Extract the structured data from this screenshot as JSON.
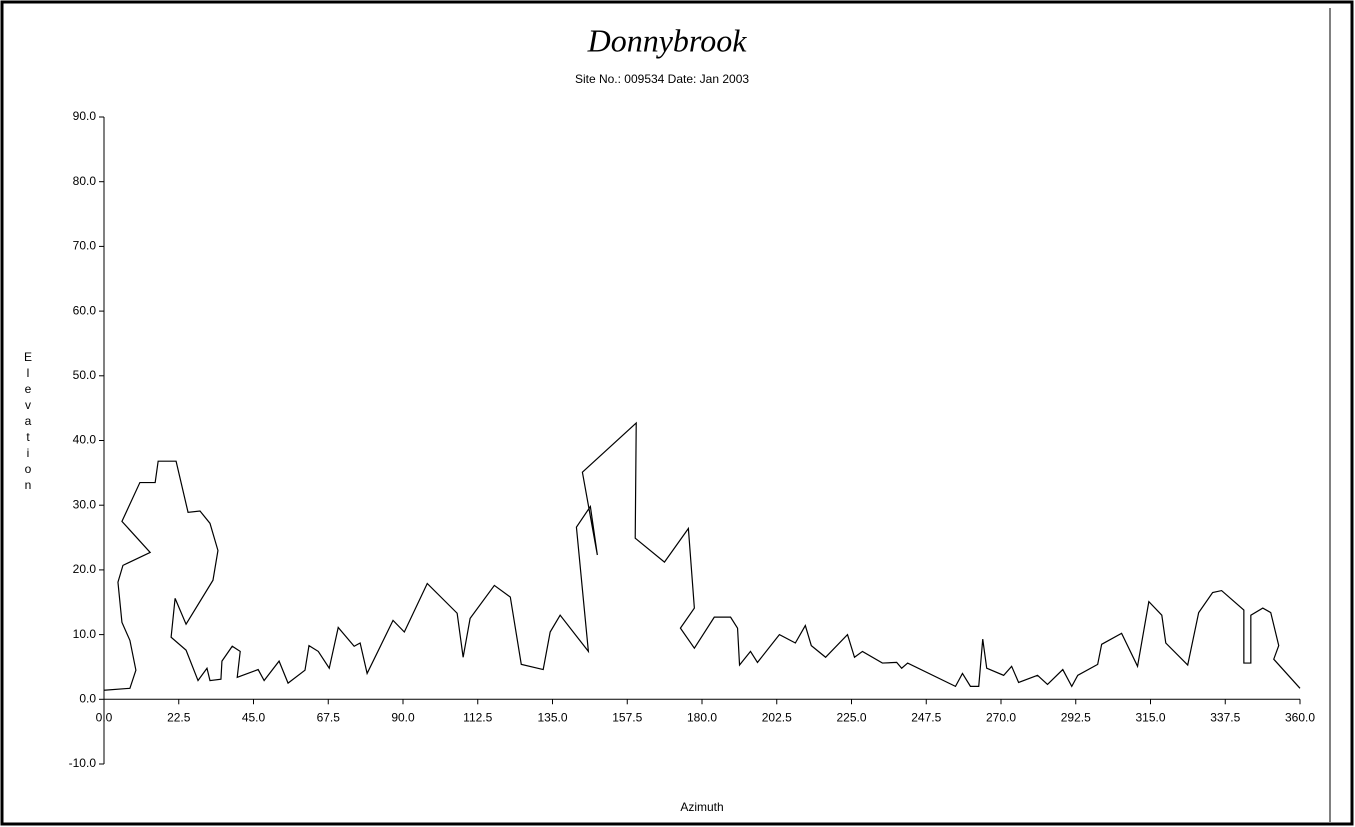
{
  "chart_data": {
    "type": "line",
    "title": "Donnybrook",
    "subtitle": "Site No.: 009534 Date: Jan 2003",
    "x_label": "Azimuth",
    "y_label": "Elevation",
    "color": "#000000",
    "x": [
      0,
      7.8,
      9.6,
      7.8,
      5.4,
      4.2,
      5.7,
      13.9,
      5.4,
      10.8,
      15.4,
      16.3,
      21.7,
      25.3,
      28.9,
      31.9,
      34.3,
      32.8,
      24.7,
      21.4,
      20.2,
      24.7,
      28.3,
      31.0,
      31.9,
      35.2,
      35.5,
      38.6,
      41.0,
      40.1,
      46.4,
      48.2,
      52.7,
      55.4,
      60.5,
      61.7,
      64.5,
      67.8,
      70.5,
      75.3,
      77.1,
      79.2,
      87.0,
      90.4,
      97.3,
      106.3,
      108.1,
      110.2,
      117.5,
      122.3,
      125.6,
      132.2,
      134.3,
      137.3,
      145.8,
      142.2,
      146.4,
      148.5,
      144.0,
      160.2,
      159.9,
      168.7,
      175.9,
      177.7,
      173.5,
      177.7,
      183.7,
      188.6,
      190.7,
      191.3,
      194.6,
      196.7,
      203.3,
      208.1,
      211.1,
      212.9,
      217.2,
      223.8,
      225.9,
      228.3,
      234.3,
      238.6,
      240.1,
      241.9,
      256.3,
      258.4,
      260.8,
      263.3,
      264.5,
      265.7,
      270.8,
      273.2,
      275.3,
      281.0,
      284.0,
      288.6,
      291.3,
      293.1,
      299.1,
      300.3,
      306.3,
      311.1,
      314.5,
      318.4,
      319.6,
      326.2,
      329.5,
      333.7,
      336.4,
      343.1,
      343.1,
      345.2,
      345.2,
      348.8,
      351.2,
      353.6,
      352.1,
      360
    ],
    "values": [
      1.4,
      1.7,
      4.5,
      9.1,
      11.9,
      18.1,
      20.7,
      22.7,
      27.5,
      33.5,
      33.5,
      36.8,
      36.8,
      28.9,
      29.1,
      27.2,
      23.0,
      18.4,
      11.6,
      15.6,
      9.6,
      7.6,
      2.9,
      4.8,
      2.9,
      3.1,
      5.9,
      8.2,
      7.4,
      3.4,
      4.6,
      2.9,
      5.9,
      2.5,
      4.5,
      8.3,
      7.4,
      4.8,
      11.1,
      8.2,
      8.7,
      4.0,
      12.2,
      10.4,
      17.9,
      13.3,
      6.5,
      12.5,
      17.6,
      15.8,
      5.4,
      4.6,
      10.4,
      13.0,
      7.4,
      26.6,
      29.8,
      22.3,
      35.1,
      42.7,
      24.9,
      21.2,
      26.4,
      14.1,
      11.0,
      7.9,
      12.7,
      12.7,
      11.0,
      5.3,
      7.4,
      5.7,
      10.0,
      8.7,
      11.4,
      8.3,
      6.5,
      10.0,
      6.5,
      7.4,
      5.6,
      5.7,
      4.8,
      5.6,
      2.0,
      4.0,
      2.0,
      2.0,
      9.3,
      4.8,
      3.7,
      5.1,
      2.6,
      3.7,
      2.3,
      4.6,
      2.0,
      3.7,
      5.4,
      8.5,
      10.2,
      5.1,
      15.1,
      13.0,
      8.7,
      5.3,
      13.4,
      16.5,
      16.8,
      13.8,
      5.6,
      5.6,
      13.0,
      14.1,
      13.4,
      8.3,
      6.2,
      1.7
    ],
    "xlim": [
      0,
      360
    ],
    "xticks": [
      {
        "value": 0,
        "label": "0.0"
      },
      {
        "value": 22.5,
        "label": "22.5"
      },
      {
        "value": 45,
        "label": "45.0"
      },
      {
        "value": 67.5,
        "label": "67.5"
      },
      {
        "value": 90,
        "label": "90.0"
      },
      {
        "value": 112.5,
        "label": "112.5"
      },
      {
        "value": 135,
        "label": "135.0"
      },
      {
        "value": 157.5,
        "label": "157.5"
      },
      {
        "value": 180,
        "label": "180.0"
      },
      {
        "value": 202.5,
        "label": "202.5"
      },
      {
        "value": 225,
        "label": "225.0"
      },
      {
        "value": 247.5,
        "label": "247.5"
      },
      {
        "value": 270,
        "label": "270.0"
      },
      {
        "value": 292.5,
        "label": "292.5"
      },
      {
        "value": 315,
        "label": "315.0"
      },
      {
        "value": 337.5,
        "label": "337.5"
      },
      {
        "value": 360,
        "label": "360.0"
      }
    ],
    "ylim": [
      -10,
      90
    ],
    "yticks": [
      {
        "value": -10,
        "label": "-10.0"
      },
      {
        "value": 0,
        "label": "0.0"
      },
      {
        "value": 10,
        "label": "10.0"
      },
      {
        "value": 20,
        "label": "20.0"
      },
      {
        "value": 30,
        "label": "30.0"
      },
      {
        "value": 40,
        "label": "40.0"
      },
      {
        "value": 50,
        "label": "50.0"
      },
      {
        "value": 60,
        "label": "60.0"
      },
      {
        "value": 70,
        "label": "70.0"
      },
      {
        "value": 80,
        "label": "80.0"
      },
      {
        "value": 90,
        "label": "90.0"
      }
    ]
  }
}
